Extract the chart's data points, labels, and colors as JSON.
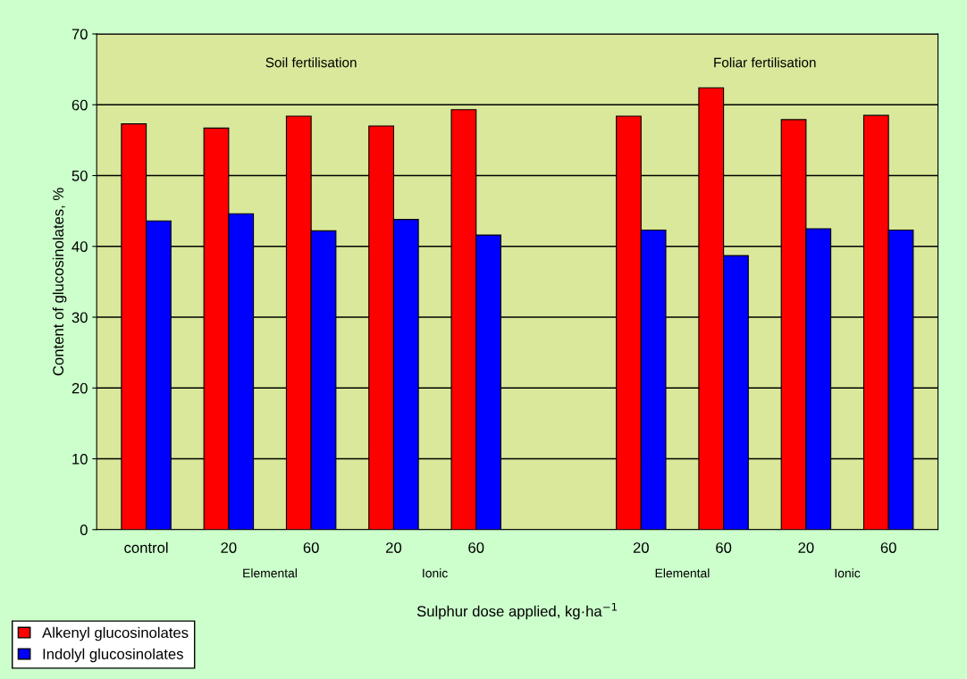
{
  "chart_data": {
    "type": "bar",
    "categories": [
      "control",
      "20",
      "60",
      "20",
      "60",
      null,
      "20",
      "60",
      "20",
      "60"
    ],
    "series": [
      {
        "name": "Alkenyl glucosinolates",
        "color": "#ff0000",
        "values": [
          57.3,
          56.7,
          58.4,
          57.0,
          59.3,
          null,
          58.4,
          62.4,
          57.9,
          58.5
        ]
      },
      {
        "name": "Indolyl glucosinolates",
        "color": "#0000ff",
        "values": [
          43.6,
          44.6,
          42.2,
          43.8,
          41.6,
          null,
          42.3,
          38.7,
          42.5,
          42.3
        ]
      }
    ],
    "ylabel": "Content of glucosinolates, %",
    "xlabel": "Sulphur dose applied, kg·ha$^{−1}$",
    "annotations": [
      "Soil fertilisation",
      "Foliar fertilisation",
      "Elemental",
      "Ionic",
      "Elemental",
      "Ionic"
    ],
    "ylim": [
      0,
      70
    ],
    "yticks": [
      0,
      10,
      20,
      30,
      40,
      50,
      60,
      70
    ],
    "grid": "y",
    "legend": "bottom left"
  }
}
